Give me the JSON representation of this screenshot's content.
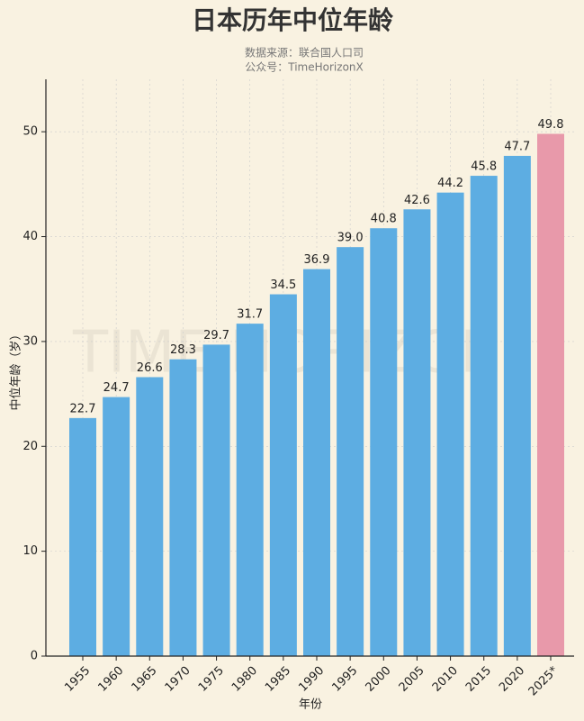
{
  "chart_data": {
    "type": "bar",
    "title": "日本历年中位年龄",
    "subtitle": [
      "数据来源：联合国人口司",
      "公众号：TimeHorizonX"
    ],
    "watermark": "TIME HORIZON",
    "x_label": "年份",
    "y_label": "中位年龄（岁）",
    "categories": [
      "1955",
      "1960",
      "1965",
      "1970",
      "1975",
      "1980",
      "1985",
      "1990",
      "1995",
      "2000",
      "2005",
      "2010",
      "2015",
      "2020",
      "2025*"
    ],
    "values": [
      22.7,
      24.7,
      26.6,
      28.3,
      29.7,
      31.7,
      34.5,
      36.9,
      39.0,
      40.8,
      42.6,
      44.2,
      45.8,
      47.7,
      49.8
    ],
    "value_labels": [
      "22.7",
      "24.7",
      "26.6",
      "28.3",
      "29.7",
      "31.7",
      "34.5",
      "36.9",
      "39.0",
      "40.8",
      "42.6",
      "44.2",
      "45.8",
      "47.7",
      "49.8"
    ],
    "colors": [
      "#5dade2",
      "#5dade2",
      "#5dade2",
      "#5dade2",
      "#5dade2",
      "#5dade2",
      "#5dade2",
      "#5dade2",
      "#5dade2",
      "#5dade2",
      "#5dade2",
      "#5dade2",
      "#5dade2",
      "#5dade2",
      "#e899aa"
    ],
    "ylim": [
      0,
      55
    ],
    "yticks": [
      0,
      10,
      20,
      30,
      40,
      50
    ],
    "grid": true
  }
}
